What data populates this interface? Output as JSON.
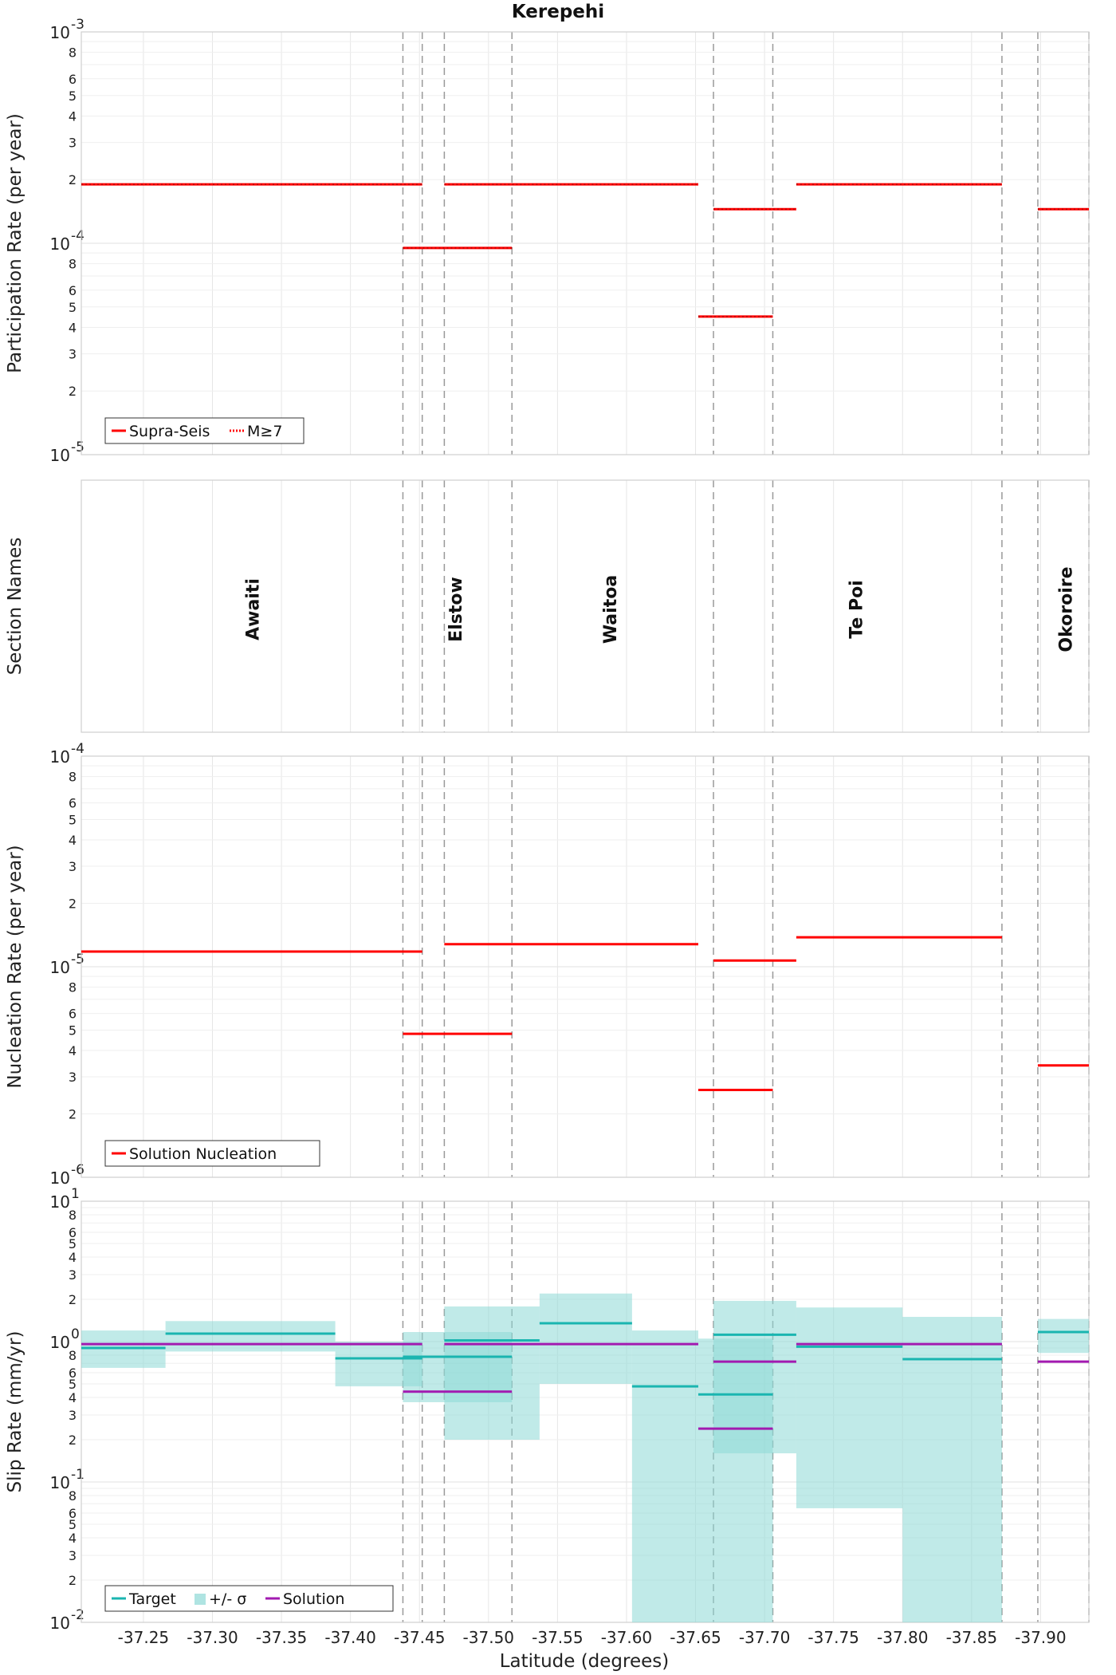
{
  "title": "Kerepehi",
  "xlabel": "Latitude (degrees)",
  "xticks": [
    "-37.25",
    "-37.30",
    "-37.35",
    "-37.40",
    "-37.45",
    "-37.50",
    "-37.55",
    "-37.60",
    "-37.65",
    "-37.70",
    "-37.75",
    "-37.80",
    "-37.85",
    "-37.90"
  ],
  "colors": {
    "red": "#ff0000",
    "teal": "#1ab5b0",
    "band": "#8dd8d6",
    "purple": "#a21ab0",
    "guide": "#999999"
  },
  "chart_data": [
    {
      "type": "line",
      "ylabel": "Participation Rate (per year)",
      "yscale": "log",
      "ylim": [
        1e-05,
        0.001
      ],
      "xlim": [
        -37.205,
        -37.935
      ],
      "grid": true,
      "legend": {
        "placement": "bottom-left",
        "entries": [
          "Supra-Seis",
          "M≥7"
        ]
      },
      "section_boundaries": [
        -37.438,
        -37.452,
        -37.468,
        -37.517,
        -37.663,
        -37.706,
        -37.872,
        -37.898,
        -37.935
      ],
      "series": [
        {
          "name": "Supra-Seis",
          "segments": [
            {
              "x": [
                -37.205,
                -37.452
              ],
              "y": 0.00019
            },
            {
              "x": [
                -37.468,
                -37.652
              ],
              "y": 0.00019
            },
            {
              "x": [
                -37.723,
                -37.872
              ],
              "y": 0.00019
            },
            {
              "x": [
                -37.438,
                -37.517
              ],
              "y": 9.5e-05
            },
            {
              "x": [
                -37.663,
                -37.723
              ],
              "y": 0.000145
            },
            {
              "x": [
                -37.652,
                -37.706
              ],
              "y": 4.5e-05
            },
            {
              "x": [
                -37.898,
                -37.935
              ],
              "y": 0.000145
            }
          ]
        }
      ]
    },
    {
      "type": "table",
      "ylabel": "Section Names",
      "sections": [
        {
          "name": "Awaiti",
          "x": -37.329
        },
        {
          "name": "Elstow",
          "x": -37.476
        },
        {
          "name": "Waitoa",
          "x": -37.588
        },
        {
          "name": "Te Poi",
          "x": -37.766
        },
        {
          "name": "Okoroire",
          "x": -37.918
        }
      ]
    },
    {
      "type": "line",
      "ylabel": "Nucleation Rate (per year)",
      "yscale": "log",
      "ylim": [
        1e-06,
        0.0001
      ],
      "grid": true,
      "legend": {
        "placement": "bottom-left",
        "entries": [
          "Solution Nucleation"
        ]
      },
      "series": [
        {
          "name": "Solution Nucleation",
          "segments": [
            {
              "x": [
                -37.205,
                -37.452
              ],
              "y": 1.18e-05
            },
            {
              "x": [
                -37.468,
                -37.652
              ],
              "y": 1.28e-05
            },
            {
              "x": [
                -37.723,
                -37.872
              ],
              "y": 1.38e-05
            },
            {
              "x": [
                -37.438,
                -37.517
              ],
              "y": 4.8e-06
            },
            {
              "x": [
                -37.663,
                -37.723
              ],
              "y": 1.07e-05
            },
            {
              "x": [
                -37.652,
                -37.706
              ],
              "y": 2.6e-06
            },
            {
              "x": [
                -37.898,
                -37.935
              ],
              "y": 3.4e-06
            }
          ]
        }
      ]
    },
    {
      "type": "line",
      "ylabel": "Slip Rate (mm/yr)",
      "yscale": "log",
      "ylim": [
        0.01,
        10
      ],
      "grid": true,
      "legend": {
        "placement": "bottom-left",
        "entries": [
          "Target",
          "+/- σ",
          "Solution"
        ]
      },
      "target": [
        {
          "x": [
            -37.205,
            -37.266
          ],
          "y": 0.9
        },
        {
          "x": [
            -37.266,
            -37.389
          ],
          "y": 1.14
        },
        {
          "x": [
            -37.389,
            -37.452
          ],
          "y": 0.76
        },
        {
          "x": [
            -37.438,
            -37.517
          ],
          "y": 0.78
        },
        {
          "x": [
            -37.468,
            -37.537
          ],
          "y": 1.02
        },
        {
          "x": [
            -37.537,
            -37.604
          ],
          "y": 1.35
        },
        {
          "x": [
            -37.604,
            -37.652
          ],
          "y": 0.48
        },
        {
          "x": [
            -37.652,
            -37.706
          ],
          "y": 0.42
        },
        {
          "x": [
            -37.663,
            -37.723
          ],
          "y": 1.12
        },
        {
          "x": [
            -37.723,
            -37.8
          ],
          "y": 0.92
        },
        {
          "x": [
            -37.8,
            -37.872
          ],
          "y": 0.75
        },
        {
          "x": [
            -37.898,
            -37.935
          ],
          "y": 1.17
        }
      ],
      "sigma": [
        {
          "x": [
            -37.205,
            -37.266
          ],
          "lo": 0.65,
          "hi": 1.2
        },
        {
          "x": [
            -37.266,
            -37.389
          ],
          "lo": 0.85,
          "hi": 1.4
        },
        {
          "x": [
            -37.389,
            -37.452
          ],
          "lo": 0.48,
          "hi": 1.0
        },
        {
          "x": [
            -37.438,
            -37.517
          ],
          "lo": 0.37,
          "hi": 1.17
        },
        {
          "x": [
            -37.468,
            -37.537
          ],
          "lo": 0.2,
          "hi": 1.78
        },
        {
          "x": [
            -37.537,
            -37.604
          ],
          "lo": 0.5,
          "hi": 2.2
        },
        {
          "x": [
            -37.604,
            -37.652
          ],
          "lo": 0.01,
          "hi": 1.2
        },
        {
          "x": [
            -37.652,
            -37.706
          ],
          "lo": 0.01,
          "hi": 1.05
        },
        {
          "x": [
            -37.663,
            -37.723
          ],
          "lo": 0.16,
          "hi": 1.95
        },
        {
          "x": [
            -37.723,
            -37.8
          ],
          "lo": 0.065,
          "hi": 1.75
        },
        {
          "x": [
            -37.8,
            -37.872
          ],
          "lo": 0.01,
          "hi": 1.5
        },
        {
          "x": [
            -37.898,
            -37.935
          ],
          "lo": 0.83,
          "hi": 1.45
        }
      ],
      "solution": [
        {
          "x": [
            -37.205,
            -37.452
          ],
          "y": 0.96
        },
        {
          "x": [
            -37.468,
            -37.652
          ],
          "y": 0.96
        },
        {
          "x": [
            -37.723,
            -37.872
          ],
          "y": 0.96
        },
        {
          "x": [
            -37.438,
            -37.517
          ],
          "y": 0.44
        },
        {
          "x": [
            -37.663,
            -37.723
          ],
          "y": 0.72
        },
        {
          "x": [
            -37.652,
            -37.706
          ],
          "y": 0.24
        },
        {
          "x": [
            -37.898,
            -37.935
          ],
          "y": 0.72
        }
      ]
    }
  ]
}
